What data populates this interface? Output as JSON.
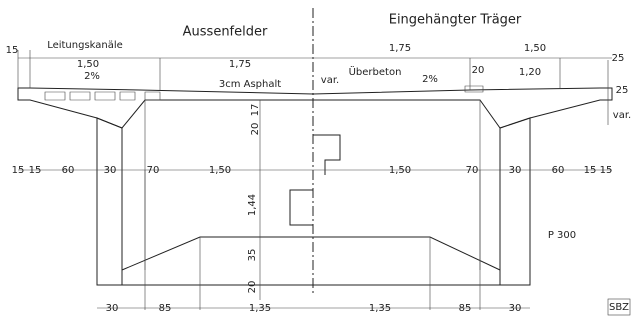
{
  "labels": [
    "Aussenfelder",
    "Eingehängter Träger",
    "Leitungskanäle",
    "15",
    "1,50",
    "1,75",
    "2%",
    "3cm Asphalt",
    "var.",
    "Überbeton",
    "2%",
    "1,75",
    "1,50",
    "20",
    "1,20",
    "25",
    "25",
    "var.",
    "17",
    "20",
    "15",
    "15",
    "60",
    "30",
    "70",
    "1,50",
    "1,44",
    "1,50",
    "70",
    "30",
    "60",
    "15",
    "15",
    "P 300",
    "35",
    "20",
    "30",
    "85",
    "1,35",
    "1,35",
    "85",
    "30",
    "SBZ"
  ]
}
